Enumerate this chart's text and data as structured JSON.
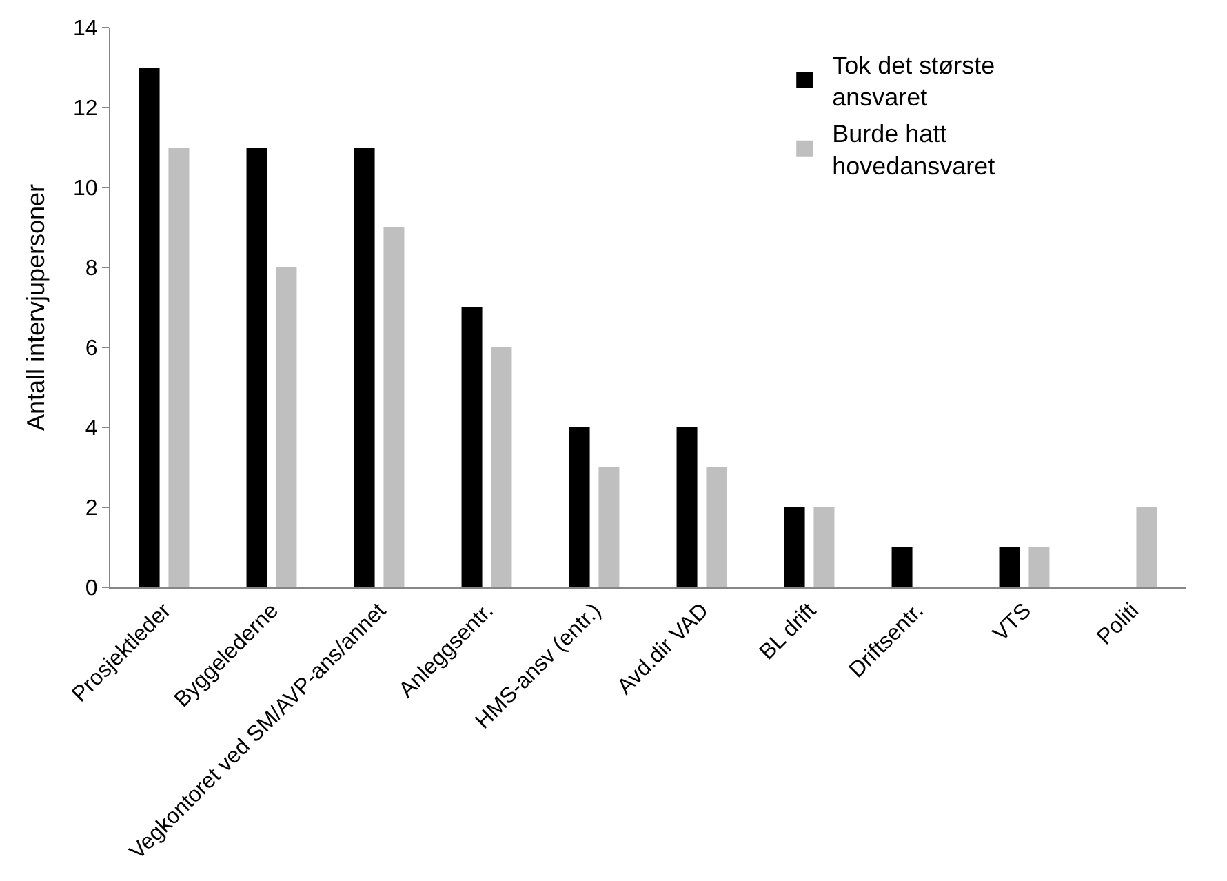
{
  "chart_data": {
    "type": "bar",
    "ylabel": "Antall intervjupersoner",
    "categories": [
      "Prosjektleder",
      "Byggelederne",
      "Vegkontoret ved SM/AVP-ans/annet",
      "Anleggsentr.",
      "HMS-ansv (entr.)",
      "Avd.dir VAD",
      "BL drift",
      "Driftsentr.",
      "VTS",
      "Politi"
    ],
    "series": [
      {
        "name": "Tok det største ansvaret",
        "color": "#000000",
        "values": [
          13,
          11,
          11,
          7,
          4,
          4,
          2,
          1,
          1,
          0
        ]
      },
      {
        "name": "Burde hatt hovedansvaret",
        "color": "#bfbfbf",
        "values": [
          11,
          8,
          9,
          6,
          3,
          3,
          2,
          0,
          1,
          2
        ]
      }
    ],
    "ylim": [
      0,
      14
    ],
    "yticks": [
      0,
      2,
      4,
      6,
      8,
      10,
      12,
      14
    ],
    "grid": false,
    "legend": "top right"
  }
}
